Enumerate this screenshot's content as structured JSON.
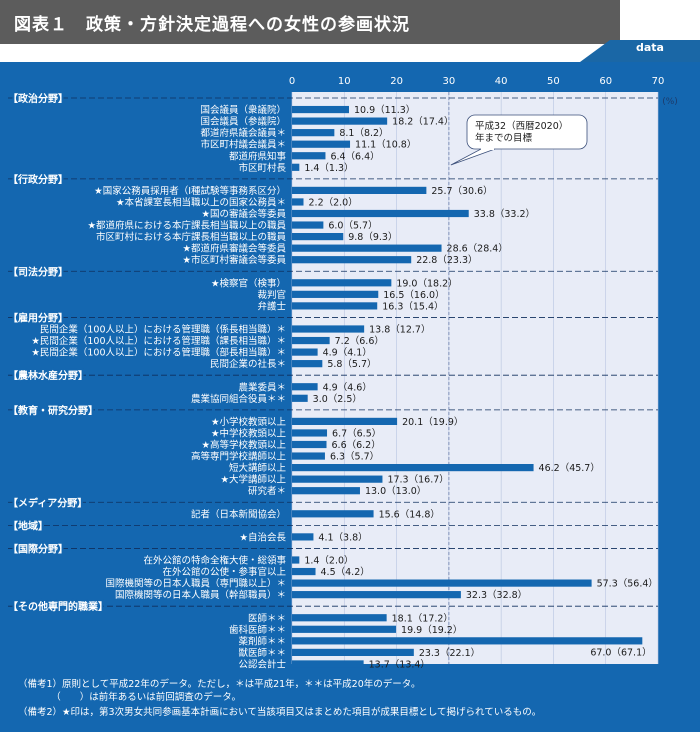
{
  "header": {
    "title": "図表１　政策・方針決定過程への女性の参画状況",
    "badge": "data",
    "icon": "triple-chevron-down-icon"
  },
  "colors": {
    "background": "#1467b0",
    "plot_area": "#e8ecf7",
    "bar": "#1467b0",
    "header": "#5c5c5c"
  },
  "chart_data": {
    "type": "bar",
    "orientation": "horizontal",
    "xlim": [
      0,
      70
    ],
    "xticks": [
      0,
      10,
      20,
      30,
      40,
      50,
      60,
      70
    ],
    "unit": "(%)",
    "target_line": 30,
    "annotation": [
      "平成32（西暦2020）",
      "年までの目標"
    ],
    "rows": [
      {
        "kind": "section",
        "label": "【政治分野】"
      },
      {
        "kind": "bar",
        "label": "国会議員（衆議院）",
        "value": 10.9,
        "prev": "11.3"
      },
      {
        "kind": "bar",
        "label": "国会議員（参議院）",
        "value": 18.2,
        "prev": "17.4"
      },
      {
        "kind": "bar",
        "label": "都道府県議会議員＊",
        "value": 8.1,
        "prev": "8.2"
      },
      {
        "kind": "bar",
        "label": "市区町村議会議員＊",
        "value": 11.1,
        "prev": "10.8"
      },
      {
        "kind": "bar",
        "label": "都道府県知事",
        "value": 6.4,
        "prev": "6.4"
      },
      {
        "kind": "bar",
        "label": "市区町村長",
        "value": 1.4,
        "prev": "1.3"
      },
      {
        "kind": "section",
        "label": "【行政分野】"
      },
      {
        "kind": "bar",
        "label": "★国家公務員採用者（Ⅰ種試験等事務系区分）",
        "value": 25.7,
        "prev": "30.6"
      },
      {
        "kind": "bar",
        "label": "★本省課室長相当職以上の国家公務員＊",
        "value": 2.2,
        "prev": "2.0"
      },
      {
        "kind": "bar",
        "label": "★国の審議会等委員",
        "value": 33.8,
        "prev": "33.2"
      },
      {
        "kind": "bar",
        "label": "★都道府県における本庁課長相当職以上の職員",
        "value": 6.0,
        "prev": "5.7"
      },
      {
        "kind": "bar",
        "label": "市区町村における本庁課長相当職以上の職員",
        "value": 9.8,
        "prev": "9.3"
      },
      {
        "kind": "bar",
        "label": "★都道府県審議会等委員",
        "value": 28.6,
        "prev": "28.4"
      },
      {
        "kind": "bar",
        "label": "★市区町村審議会等委員",
        "value": 22.8,
        "prev": "23.3"
      },
      {
        "kind": "section",
        "label": "【司法分野】"
      },
      {
        "kind": "bar",
        "label": "★検察官（検事）",
        "value": 19.0,
        "prev": "18.2"
      },
      {
        "kind": "bar",
        "label": "裁判官",
        "value": 16.5,
        "prev": "16.0"
      },
      {
        "kind": "bar",
        "label": "弁護士",
        "value": 16.3,
        "prev": "15.4"
      },
      {
        "kind": "section",
        "label": "【雇用分野】"
      },
      {
        "kind": "bar",
        "label": "民間企業（100人以上）における管理職（係長相当職）＊",
        "value": 13.8,
        "prev": "12.7"
      },
      {
        "kind": "bar",
        "label": "★民間企業（100人以上）における管理職（課長相当職）＊",
        "value": 7.2,
        "prev": "6.6"
      },
      {
        "kind": "bar",
        "label": "★民間企業（100人以上）における管理職（部長相当職）＊",
        "value": 4.9,
        "prev": "4.1"
      },
      {
        "kind": "bar",
        "label": "民間企業の社長＊",
        "value": 5.8,
        "prev": "5.7"
      },
      {
        "kind": "section",
        "label": "【農林水産分野】"
      },
      {
        "kind": "bar",
        "label": "農業委員＊",
        "value": 4.9,
        "prev": "4.6"
      },
      {
        "kind": "bar",
        "label": "農業協同組合役員＊＊",
        "value": 3.0,
        "prev": "2.5"
      },
      {
        "kind": "section",
        "label": "【教育・研究分野】"
      },
      {
        "kind": "bar",
        "label": "★小学校教頭以上",
        "value": 20.1,
        "prev": "19.9"
      },
      {
        "kind": "bar",
        "label": "★中学校教頭以上",
        "value": 6.7,
        "prev": "6.5"
      },
      {
        "kind": "bar",
        "label": "★高等学校教頭以上",
        "value": 6.6,
        "prev": "6.2"
      },
      {
        "kind": "bar",
        "label": "高等専門学校講師以上",
        "value": 6.3,
        "prev": "5.7"
      },
      {
        "kind": "bar",
        "label": "短大講師以上",
        "value": 46.2,
        "prev": "45.7"
      },
      {
        "kind": "bar",
        "label": "★大学講師以上",
        "value": 17.3,
        "prev": "16.7"
      },
      {
        "kind": "bar",
        "label": "研究者＊",
        "value": 13.0,
        "prev": "13.0"
      },
      {
        "kind": "section",
        "label": "【メディア分野】"
      },
      {
        "kind": "bar",
        "label": "記者（日本新聞協会）",
        "value": 15.6,
        "prev": "14.8"
      },
      {
        "kind": "section",
        "label": "【地域】"
      },
      {
        "kind": "bar",
        "label": "★自治会長",
        "value": 4.1,
        "prev": "3.8"
      },
      {
        "kind": "section",
        "label": "【国際分野】"
      },
      {
        "kind": "bar",
        "label": "在外公館の特命全権大使・総領事",
        "value": 1.4,
        "prev": "2.0"
      },
      {
        "kind": "bar",
        "label": "在外公館の公使・参事官以上",
        "value": 4.5,
        "prev": "4.2"
      },
      {
        "kind": "bar",
        "label": "国際機関等の日本人職員（専門職以上）＊",
        "value": 57.3,
        "prev": "56.4"
      },
      {
        "kind": "bar",
        "label": "国際機関等の日本人職員（幹部職員）＊",
        "value": 32.3,
        "prev": "32.8"
      },
      {
        "kind": "section",
        "label": "【その他専門的職業】"
      },
      {
        "kind": "bar",
        "label": "医師＊＊",
        "value": 18.1,
        "prev": "17.2"
      },
      {
        "kind": "bar",
        "label": "歯科医師＊＊",
        "value": 19.9,
        "prev": "19.2"
      },
      {
        "kind": "bar",
        "label": "薬剤師＊＊",
        "value": 67.0,
        "prev": "67.1"
      },
      {
        "kind": "bar",
        "label": "獣医師＊＊",
        "value": 23.3,
        "prev": "22.1"
      },
      {
        "kind": "bar",
        "label": "公認会計士",
        "value": 13.7,
        "prev": "13.4"
      }
    ]
  },
  "notes": [
    "（備考1）原則として平成22年のデータ。ただし，＊は平成21年，＊＊は平成20年のデータ。",
    "　　　　（　　）は前年あるいは前回調査のデータ。",
    "（備考2）★印は，第3次男女共同参画基本計画において当該項目又はまとめた項目が成果目標として掲げられているもの。"
  ]
}
